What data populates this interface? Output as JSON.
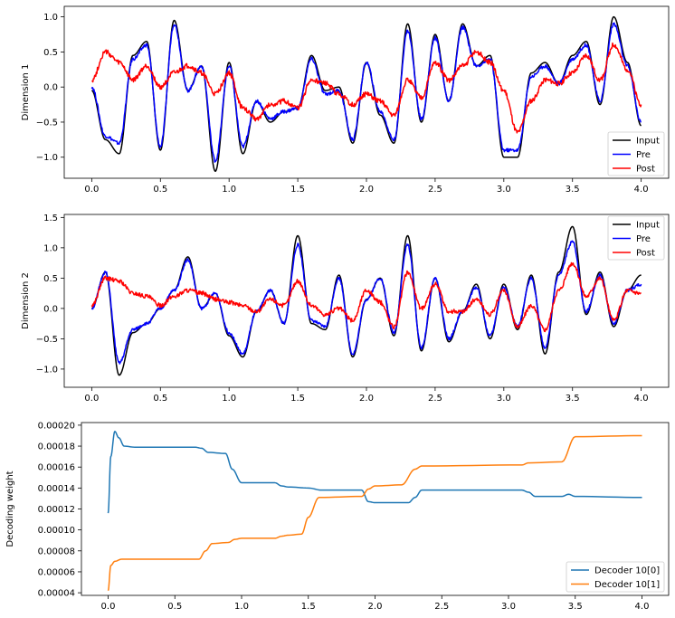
{
  "chart_data": [
    {
      "type": "line",
      "title": "",
      "xlabel": "",
      "ylabel": "Dimension 1",
      "xlim": [
        -0.2,
        4.2
      ],
      "ylim": [
        -1.3,
        1.15
      ],
      "xticks": [
        0.0,
        0.5,
        1.0,
        1.5,
        2.0,
        2.5,
        3.0,
        3.5,
        4.0
      ],
      "xtick_labels": [
        "0.0",
        "0.5",
        "1.0",
        "1.5",
        "2.0",
        "2.5",
        "3.0",
        "3.5",
        "4.0"
      ],
      "yticks": [
        -1.0,
        -0.5,
        0.0,
        0.5,
        1.0
      ],
      "ytick_labels": [
        "−1.0",
        "−0.5",
        "0.0",
        "0.5",
        "1.0"
      ],
      "legend_position": "bottom-right",
      "grid": false,
      "x": [
        0.0,
        0.1,
        0.2,
        0.3,
        0.4,
        0.5,
        0.6,
        0.7,
        0.8,
        0.9,
        1.0,
        1.1,
        1.2,
        1.3,
        1.4,
        1.5,
        1.6,
        1.7,
        1.8,
        1.9,
        2.0,
        2.1,
        2.2,
        2.3,
        2.4,
        2.5,
        2.6,
        2.7,
        2.8,
        2.9,
        3.0,
        3.1,
        3.2,
        3.3,
        3.4,
        3.5,
        3.6,
        3.7,
        3.8,
        3.9,
        4.0
      ],
      "series": [
        {
          "name": "Input",
          "color": "#000000",
          "values": [
            -0.05,
            -0.75,
            -0.95,
            0.45,
            0.65,
            -0.9,
            0.95,
            -0.05,
            0.3,
            -1.2,
            0.35,
            -0.95,
            -0.2,
            -0.5,
            -0.35,
            -0.3,
            0.45,
            -0.05,
            0.0,
            -0.8,
            0.35,
            -0.4,
            -0.8,
            0.9,
            -0.5,
            0.75,
            -0.2,
            0.9,
            0.3,
            0.45,
            -1.0,
            -1.0,
            0.2,
            0.35,
            0.05,
            0.45,
            0.65,
            -0.25,
            1.0,
            0.35,
            -0.55
          ]
        },
        {
          "name": "Pre",
          "color": "#0000ff",
          "values": [
            0.0,
            -0.7,
            -0.8,
            0.4,
            0.6,
            -0.85,
            0.9,
            -0.05,
            0.3,
            -1.05,
            0.3,
            -0.85,
            -0.2,
            -0.45,
            -0.35,
            -0.3,
            0.4,
            -0.1,
            -0.05,
            -0.75,
            0.35,
            -0.35,
            -0.75,
            0.8,
            -0.45,
            0.7,
            -0.2,
            0.85,
            0.3,
            0.4,
            -0.9,
            -0.9,
            0.15,
            0.3,
            0.05,
            0.4,
            0.6,
            -0.2,
            0.9,
            0.3,
            -0.5
          ]
        },
        {
          "name": "Post",
          "color": "#ff0000",
          "values": [
            0.1,
            0.5,
            0.35,
            0.1,
            0.3,
            0.0,
            0.2,
            0.3,
            0.2,
            -0.1,
            0.2,
            -0.3,
            -0.45,
            -0.25,
            -0.2,
            -0.3,
            0.1,
            0.05,
            -0.1,
            -0.25,
            -0.1,
            -0.2,
            -0.4,
            0.1,
            -0.15,
            0.35,
            0.1,
            0.3,
            0.5,
            0.35,
            -0.05,
            -0.65,
            -0.2,
            0.1,
            0.05,
            0.2,
            0.45,
            0.1,
            0.6,
            0.25,
            -0.25
          ]
        }
      ]
    },
    {
      "type": "line",
      "title": "",
      "xlabel": "",
      "ylabel": "Dimension 2",
      "xlim": [
        -0.2,
        4.2
      ],
      "ylim": [
        -1.3,
        1.55
      ],
      "xticks": [
        0.0,
        0.5,
        1.0,
        1.5,
        2.0,
        2.5,
        3.0,
        3.5,
        4.0
      ],
      "xtick_labels": [
        "0.0",
        "0.5",
        "1.0",
        "1.5",
        "2.0",
        "2.5",
        "3.0",
        "3.5",
        "4.0"
      ],
      "yticks": [
        -1.0,
        -0.5,
        0.0,
        0.5,
        1.0,
        1.5
      ],
      "ytick_labels": [
        "−1.0",
        "−0.5",
        "0.0",
        "0.5",
        "1.0",
        "1.5"
      ],
      "legend_position": "top-right",
      "grid": false,
      "x": [
        0.0,
        0.1,
        0.2,
        0.3,
        0.4,
        0.5,
        0.6,
        0.7,
        0.8,
        0.9,
        1.0,
        1.1,
        1.2,
        1.3,
        1.4,
        1.5,
        1.6,
        1.7,
        1.8,
        1.9,
        2.0,
        2.1,
        2.2,
        2.3,
        2.4,
        2.5,
        2.6,
        2.7,
        2.8,
        2.9,
        3.0,
        3.1,
        3.2,
        3.3,
        3.4,
        3.5,
        3.6,
        3.7,
        3.8,
        3.9,
        4.0
      ],
      "series": [
        {
          "name": "Input",
          "color": "#000000",
          "values": [
            0.0,
            0.6,
            -1.1,
            -0.4,
            -0.25,
            0.0,
            0.3,
            0.85,
            0.0,
            0.25,
            -0.45,
            -0.8,
            -0.05,
            0.3,
            -0.25,
            1.2,
            -0.25,
            -0.35,
            0.55,
            -0.8,
            0.15,
            0.5,
            -0.45,
            1.2,
            -0.7,
            0.5,
            -0.55,
            -0.05,
            0.4,
            -0.5,
            0.4,
            -0.35,
            0.55,
            -0.75,
            0.6,
            1.35,
            -0.1,
            0.6,
            -0.3,
            0.3,
            0.55
          ]
        },
        {
          "name": "Pre",
          "color": "#0000ff",
          "values": [
            0.0,
            0.6,
            -0.9,
            -0.35,
            -0.25,
            0.0,
            0.3,
            0.8,
            0.0,
            0.25,
            -0.4,
            -0.75,
            -0.05,
            0.3,
            -0.25,
            1.05,
            -0.2,
            -0.3,
            0.5,
            -0.75,
            0.15,
            0.5,
            -0.4,
            1.05,
            -0.65,
            0.5,
            -0.5,
            -0.05,
            0.35,
            -0.45,
            0.35,
            -0.3,
            0.5,
            -0.65,
            0.55,
            1.1,
            -0.05,
            0.55,
            -0.25,
            0.3,
            0.4
          ]
        },
        {
          "name": "Post",
          "color": "#ff0000",
          "values": [
            0.05,
            0.5,
            0.45,
            0.25,
            0.2,
            0.05,
            0.2,
            0.3,
            0.25,
            0.15,
            0.1,
            0.05,
            -0.05,
            0.15,
            0.05,
            0.45,
            0.05,
            -0.1,
            0.0,
            -0.2,
            0.3,
            0.1,
            -0.3,
            0.6,
            0.0,
            0.4,
            -0.05,
            -0.05,
            0.15,
            -0.1,
            0.3,
            -0.3,
            0.05,
            -0.35,
            0.3,
            0.75,
            0.2,
            0.5,
            -0.2,
            0.3,
            0.25
          ]
        }
      ]
    },
    {
      "type": "line",
      "title": "",
      "xlabel": "",
      "ylabel": "Decoding weight",
      "xlim": [
        -0.2,
        4.2
      ],
      "ylim": [
        3.75e-05,
        0.0002025
      ],
      "xticks": [
        0.0,
        0.5,
        1.0,
        1.5,
        2.0,
        2.5,
        3.0,
        3.5,
        4.0
      ],
      "xtick_labels": [
        "0.0",
        "0.5",
        "1.0",
        "1.5",
        "2.0",
        "2.5",
        "3.0",
        "3.5",
        "4.0"
      ],
      "yticks": [
        4e-05,
        6e-05,
        8e-05,
        0.0001,
        0.00012,
        0.00014,
        0.00016,
        0.00018,
        0.0002
      ],
      "ytick_labels": [
        "0.00004",
        "0.00006",
        "0.00008",
        "0.00010",
        "0.00012",
        "0.00014",
        "0.00016",
        "0.00018",
        "0.00020"
      ],
      "legend_position": "bottom-right",
      "grid": false,
      "series": [
        {
          "name": "Decoder 10[0]",
          "color": "#1f77b4",
          "x": [
            0.0,
            0.02,
            0.05,
            0.08,
            0.12,
            0.2,
            0.65,
            0.7,
            0.75,
            0.88,
            0.93,
            1.0,
            1.25,
            1.3,
            1.35,
            1.5,
            1.6,
            1.9,
            1.95,
            2.0,
            2.25,
            2.3,
            2.35,
            3.1,
            3.15,
            3.2,
            3.4,
            3.45,
            3.5,
            4.0
          ],
          "values": [
            0.000116,
            0.00017,
            0.000194,
            0.000188,
            0.00018,
            0.000179,
            0.000179,
            0.000178,
            0.000174,
            0.000173,
            0.000158,
            0.000145,
            0.000145,
            0.000142,
            0.000141,
            0.00014,
            0.000138,
            0.000138,
            0.000127,
            0.000126,
            0.000126,
            0.000131,
            0.000138,
            0.000138,
            0.000136,
            0.000132,
            0.000132,
            0.000134,
            0.000132,
            0.000131
          ]
        },
        {
          "name": "Decoder 10[1]",
          "color": "#ff7f0e",
          "x": [
            0.0,
            0.02,
            0.05,
            0.1,
            0.2,
            0.68,
            0.73,
            0.78,
            0.9,
            0.95,
            1.0,
            1.25,
            1.3,
            1.35,
            1.45,
            1.5,
            1.58,
            1.9,
            1.95,
            2.0,
            2.2,
            2.3,
            2.35,
            3.1,
            3.15,
            3.4,
            3.5,
            4.0
          ],
          "values": [
            4.2e-05,
            6.6e-05,
            7e-05,
            7.2e-05,
            7.2e-05,
            7.2e-05,
            8e-05,
            8.7e-05,
            8.8e-05,
            9.1e-05,
            9.2e-05,
            9.2e-05,
            9.4e-05,
            9.5e-05,
            9.6e-05,
            0.000112,
            0.000131,
            0.000132,
            0.000139,
            0.000142,
            0.000143,
            0.000158,
            0.000161,
            0.000162,
            0.000164,
            0.000165,
            0.000189,
            0.00019
          ]
        }
      ]
    }
  ]
}
